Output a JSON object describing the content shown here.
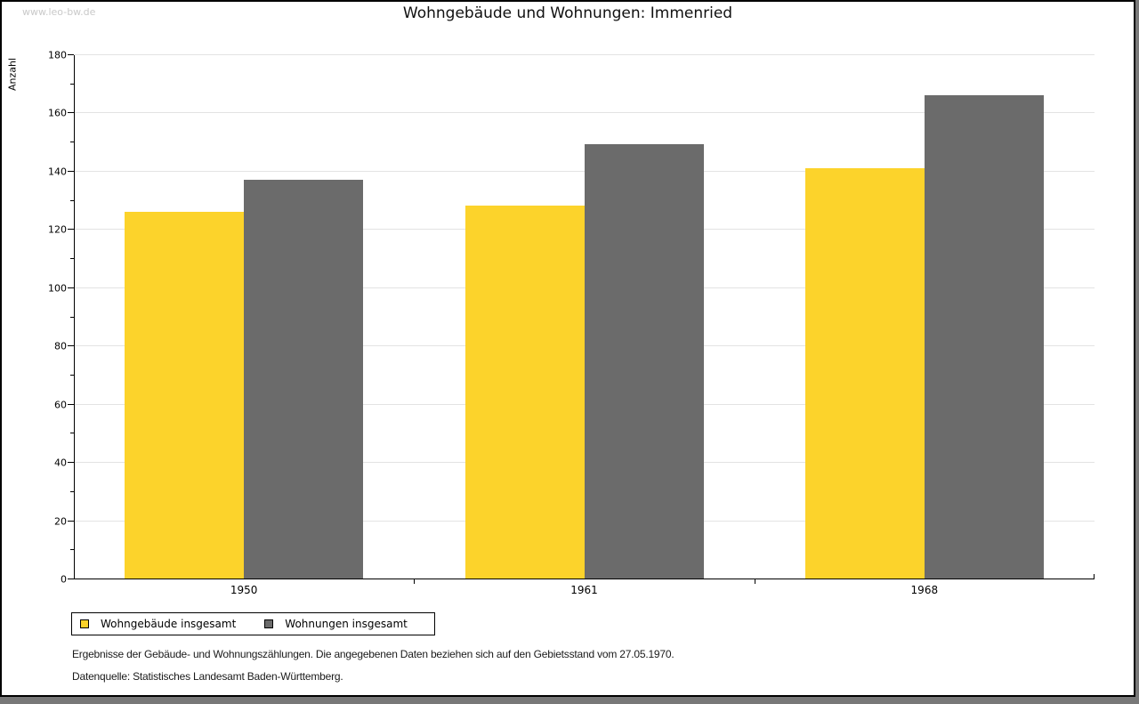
{
  "page": {
    "watermark": "www.leo-bw.de"
  },
  "chart_data": {
    "type": "bar",
    "title": "Wohngebäude und Wohnungen: Immenried",
    "ylabel": "Anzahl",
    "xlabel": "",
    "categories": [
      "1950",
      "1961",
      "1968"
    ],
    "series": [
      {
        "name": "Wohngebäude insgesamt",
        "color": "#FCD32B",
        "values": [
          126,
          128,
          141
        ]
      },
      {
        "name": "Wohnungen insgesamt",
        "color": "#6B6B6B",
        "values": [
          137,
          149,
          166
        ]
      }
    ],
    "ylim": [
      0,
      180
    ],
    "ytick_major": 20,
    "ytick_minor": 10,
    "grid": true,
    "legend_position": "bottom-left"
  },
  "footnotes": {
    "line1": "Ergebnisse der Gebäude- und Wohnungszählungen. Die angegebenen Daten beziehen sich auf den Gebietsstand vom 27.05.1970.",
    "line2": "Datenquelle: Statistisches Landesamt Baden-Württemberg."
  }
}
